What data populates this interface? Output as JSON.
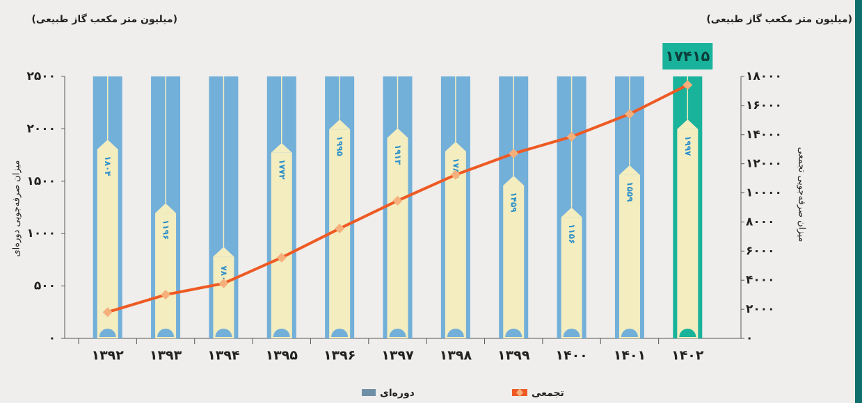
{
  "chart_data": {
    "type": "bar",
    "y_unit": "(میلیون متر مکعب گاز طبیعی)",
    "y2_unit": "(میلیون متر مکعب گاز طبیعی)",
    "ylabel": "میزان صرفه‌جویی دوره‌ای",
    "y2label": "میزان صرفه‌جویی تجمعی",
    "categories": [
      "۱۳۹۲",
      "۱۳۹۳",
      "۱۳۹۴",
      "۱۳۹۵",
      "۱۳۹۶",
      "۱۳۹۷",
      "۱۳۹۸",
      "۱۳۹۹",
      "۱۴۰۰",
      "۱۴۰۱",
      "۱۴۰۲"
    ],
    "series": [
      {
        "name": "دوره‌ای",
        "color": "#f3edc0",
        "band_colors": [
          "#72afd9",
          "#72afd9",
          "#72afd9",
          "#72afd9",
          "#72afd9",
          "#72afd9",
          "#72afd9",
          "#72afd9",
          "#72afd9",
          "#72afd9",
          "#19b39b"
        ],
        "values": [
          1804,
          1196,
          780,
          1772,
          1995,
          1913,
          1784,
          1459,
          1156,
          1559,
          1997
        ],
        "value_labels": [
          "۱۸۰۴",
          "۱۱۹۶",
          "۷۸۰",
          "۱۷۷۲",
          "۱۹۹۵",
          "۱۹۱۳",
          "۱۷۸۴",
          "۱۴۵۹",
          "۱۱۵۶",
          "۱۵۵۹",
          "۱۹۹۷"
        ]
      },
      {
        "name": "تجمعی",
        "type": "line",
        "axis": "y2",
        "color": "#ee5a24",
        "marker_color": "#f5b07c",
        "values": [
          1804,
          3000,
          3780,
          5552,
          7547,
          9460,
          11244,
          12703,
          13859,
          15418,
          17415
        ],
        "value_labels": [
          null,
          null,
          null,
          null,
          null,
          null,
          null,
          null,
          null,
          null,
          "۱۷۴۱۵"
        ]
      }
    ],
    "ylim": [
      0,
      2500
    ],
    "yticks": [
      {
        "value": 0,
        "label": "۰"
      },
      {
        "value": 500,
        "label": "۵۰۰"
      },
      {
        "value": 1000,
        "label": "۱۰۰۰"
      },
      {
        "value": 1500,
        "label": "۱۵۰۰"
      },
      {
        "value": 2000,
        "label": "۲۰۰۰"
      },
      {
        "value": 2500,
        "label": "۲۵۰۰"
      }
    ],
    "y2lim": [
      0,
      18000
    ],
    "y2ticks": [
      {
        "value": 0,
        "label": "۰"
      },
      {
        "value": 2000,
        "label": "۲۰۰۰"
      },
      {
        "value": 4000,
        "label": "۴۰۰۰"
      },
      {
        "value": 6000,
        "label": "۶۰۰۰"
      },
      {
        "value": 8000,
        "label": "۸۰۰۰"
      },
      {
        "value": 10000,
        "label": "۱۰۰۰۰"
      },
      {
        "value": 12000,
        "label": "۱۲۰۰۰"
      },
      {
        "value": 14000,
        "label": "۱۴۰۰۰"
      },
      {
        "value": 16000,
        "label": "۱۶۰۰۰"
      },
      {
        "value": 18000,
        "label": "۱۸۰۰۰"
      }
    ],
    "grid": false
  }
}
